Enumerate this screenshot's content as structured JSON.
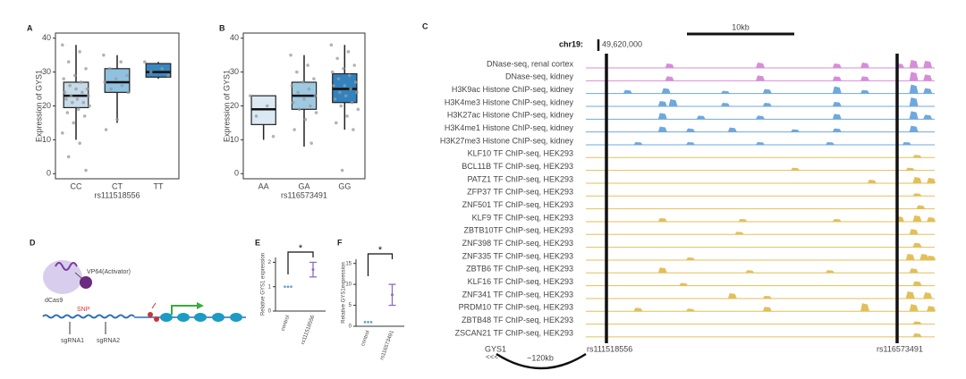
{
  "chart_data": [
    {
      "type": "box",
      "panel": "A",
      "ylabel": "Expression of GYS1",
      "xlabel": "rs111518556",
      "categories": [
        "CC",
        "CT",
        "TT"
      ],
      "ylim": [
        -1.5,
        41.5
      ],
      "yticks": [
        0,
        10,
        20,
        30,
        40
      ],
      "boxes": [
        {
          "whisker_low": 10,
          "q1": 19.5,
          "median": 23,
          "q3": 27,
          "whisker_high": 38,
          "color": "#c6dbea"
        },
        {
          "whisker_low": 15,
          "q1": 24,
          "median": 27,
          "q3": 31,
          "whisker_high": 35,
          "color": "#8fc1e0"
        },
        {
          "whisker_low": 28,
          "q1": 28.5,
          "median": 30,
          "q3": 32.5,
          "whisker_high": 33,
          "color": "#3a87c0"
        }
      ],
      "points": [
        [
          38,
          36,
          33,
          31,
          29,
          28,
          27,
          26,
          25,
          25,
          24,
          24,
          23,
          23,
          22,
          22,
          21,
          21,
          20,
          19,
          18,
          17,
          15,
          12,
          9,
          5,
          1
        ],
        [
          35,
          33,
          31,
          29,
          28,
          27,
          26,
          25,
          24,
          16,
          13
        ],
        [
          33,
          31,
          30,
          29
        ]
      ]
    },
    {
      "type": "box",
      "panel": "B",
      "ylabel": "Expression of GYS1",
      "xlabel": "rs116573491",
      "categories": [
        "AA",
        "GA",
        "GG"
      ],
      "ylim": [
        -1.5,
        41.5
      ],
      "yticks": [
        0,
        10,
        20,
        30,
        40
      ],
      "boxes": [
        {
          "whisker_low": 10,
          "q1": 14.5,
          "median": 19,
          "q3": 23,
          "whisker_high": 23,
          "color": "#dbe9f4"
        },
        {
          "whisker_low": 8,
          "q1": 19,
          "median": 23,
          "q3": 27,
          "whisker_high": 35,
          "color": "#9ecae1"
        },
        {
          "whisker_low": 13,
          "q1": 21,
          "median": 25,
          "q3": 29.5,
          "whisker_high": 38,
          "color": "#3182bd"
        }
      ],
      "points": [
        [
          23,
          20,
          17,
          11
        ],
        [
          35,
          32,
          30,
          28,
          27,
          26,
          25,
          24,
          23,
          22,
          21,
          20,
          19,
          18,
          16,
          13,
          9
        ],
        [
          38,
          36,
          34,
          32,
          31,
          30,
          29,
          28,
          27,
          26,
          26,
          25,
          24,
          24,
          23,
          22,
          21,
          20,
          19,
          17,
          15,
          13,
          1
        ]
      ]
    },
    {
      "type": "dot",
      "panel": "E",
      "ylabel": "Relative GYS1 expression",
      "annotation": "*",
      "categories": [
        "control",
        "rs111518556"
      ],
      "ylim": [
        0,
        2.2
      ],
      "yticks": [
        0,
        1,
        2
      ],
      "groups": [
        {
          "points": [
            1,
            1,
            1
          ],
          "color": "#5b9bd5"
        },
        {
          "mean": 1.7,
          "error": 0.3,
          "color": "#8e6bbf"
        }
      ]
    },
    {
      "type": "dot",
      "panel": "F",
      "ylabel": "Relative GYS1expression",
      "annotation": "*",
      "categories": [
        "control",
        "rs116573491"
      ],
      "ylim": [
        0,
        16
      ],
      "yticks": [
        0,
        5,
        10,
        15
      ],
      "groups": [
        {
          "points": [
            1,
            1,
            1
          ],
          "color": "#5b9bd5"
        },
        {
          "mean": 7.5,
          "error": 2.5,
          "color": "#8e6bbf"
        }
      ]
    }
  ],
  "browser": {
    "panel": "C",
    "scale_label": "10kb",
    "chrom": "chr19:",
    "position": "49,620,000",
    "gene": "GYS1",
    "strand": "<<<",
    "distance": "~120kb",
    "snp_left": "rs111518556",
    "snp_right": "rs116573491",
    "tracks": [
      {
        "name": "DNase-seq, renal cortex",
        "color": "#d58ed8",
        "peaks": [
          [
            0.24,
            0.5
          ],
          [
            0.5,
            0.6
          ],
          [
            0.72,
            0.5
          ],
          [
            0.8,
            0.6
          ],
          [
            0.9,
            0.5
          ],
          [
            0.94,
            0.9
          ],
          [
            0.98,
            0.8
          ]
        ]
      },
      {
        "name": "DNase-seq, kidney",
        "color": "#d58ed8",
        "peaks": [
          [
            0.24,
            0.5
          ],
          [
            0.5,
            0.6
          ],
          [
            0.72,
            0.5
          ],
          [
            0.8,
            0.5
          ],
          [
            0.94,
            1
          ],
          [
            0.98,
            0.7
          ]
        ]
      },
      {
        "name": "H3K9ac Histone ChIP-seq, kidney",
        "color": "#6fa8dc",
        "peaks": [
          [
            0.12,
            0.4
          ],
          [
            0.23,
            0.6
          ],
          [
            0.4,
            0.3
          ],
          [
            0.52,
            0.5
          ],
          [
            0.72,
            0.8
          ],
          [
            0.8,
            0.4
          ],
          [
            0.94,
            1
          ],
          [
            0.98,
            0.6
          ]
        ]
      },
      {
        "name": "H3K4me3 Histone ChIP-seq, kidney",
        "color": "#6fa8dc",
        "peaks": [
          [
            0.22,
            0.6
          ],
          [
            0.25,
            0.8
          ],
          [
            0.4,
            0.4
          ],
          [
            0.52,
            0.4
          ],
          [
            0.72,
            0.5
          ],
          [
            0.94,
            1
          ]
        ]
      },
      {
        "name": "H3K27ac Histone ChIP-seq, kidney",
        "color": "#6fa8dc",
        "peaks": [
          [
            0.22,
            0.7
          ],
          [
            0.33,
            0.4
          ],
          [
            0.5,
            0.4
          ],
          [
            0.72,
            0.6
          ],
          [
            0.94,
            0.9
          ],
          [
            0.98,
            0.5
          ]
        ]
      },
      {
        "name": "H3K4me1 Histone ChIP-seq, kidney",
        "color": "#6fa8dc",
        "peaks": [
          [
            0.22,
            0.6
          ],
          [
            0.3,
            0.4
          ],
          [
            0.42,
            0.5
          ],
          [
            0.6,
            0.3
          ],
          [
            0.72,
            0.4
          ],
          [
            0.94,
            0.7
          ]
        ]
      },
      {
        "name": "H3K27me3 Histone ChIP-seq, kidney",
        "color": "#6fa8dc",
        "peaks": [
          [
            0.15,
            0.3
          ],
          [
            0.3,
            0.3
          ],
          [
            0.5,
            0.3
          ],
          [
            0.7,
            0.3
          ],
          [
            0.92,
            0.3
          ]
        ]
      },
      {
        "name": "KLF10 TF ChIP-seq, HEK293",
        "color": "#e3bf5a",
        "peaks": [
          [
            0.95,
            0.3
          ]
        ]
      },
      {
        "name": "BCL11B TF ChIP-seq, HEK293",
        "color": "#e3bf5a",
        "peaks": [
          [
            0.6,
            0.3
          ],
          [
            0.93,
            0.3
          ]
        ]
      },
      {
        "name": "PATZ1 TF ChIP-seq, HEK293",
        "color": "#e3bf5a",
        "peaks": [
          [
            0.82,
            0.4
          ],
          [
            0.95,
            0.7
          ],
          [
            0.99,
            0.6
          ]
        ]
      },
      {
        "name": "ZFP37 TF ChIP-seq, HEK293",
        "color": "#e3bf5a",
        "peaks": [
          [
            0.95,
            0.3
          ]
        ]
      },
      {
        "name": "ZNF501 TF ChIP-seq, HEK293",
        "color": "#e3bf5a",
        "peaks": [
          [
            0.96,
            0.4
          ]
        ]
      },
      {
        "name": "KLF9 TF ChIP-seq, HEK293",
        "color": "#e3bf5a",
        "peaks": [
          [
            0.22,
            0.4
          ],
          [
            0.45,
            0.3
          ],
          [
            0.72,
            0.3
          ],
          [
            0.9,
            0.6
          ],
          [
            0.95,
            0.7
          ],
          [
            0.99,
            0.5
          ]
        ]
      },
      {
        "name": "ZBTB10TF ChIP-seq, HEK293",
        "color": "#e3bf5a",
        "peaks": [
          [
            0.44,
            0.3
          ],
          [
            0.94,
            0.6
          ]
        ]
      },
      {
        "name": "ZNF398 TF ChIP-seq, HEK293",
        "color": "#e3bf5a",
        "peaks": [
          [
            0.95,
            0.5
          ]
        ]
      },
      {
        "name": "ZNF335 TF ChIP-seq, HEK293",
        "color": "#e3bf5a",
        "peaks": [
          [
            0.3,
            0.3
          ],
          [
            0.93,
            0.7
          ],
          [
            0.97,
            0.7
          ],
          [
            0.99,
            0.5
          ]
        ]
      },
      {
        "name": "ZBTB6 TF ChIP-seq, HEK293",
        "color": "#e3bf5a",
        "peaks": [
          [
            0.22,
            0.6
          ],
          [
            0.47,
            0.3
          ],
          [
            0.7,
            0.3
          ],
          [
            0.94,
            0.5
          ]
        ]
      },
      {
        "name": "KLF16 TF ChIP-seq, HEK293",
        "color": "#e3bf5a",
        "peaks": [
          [
            0.28,
            0.3
          ],
          [
            0.95,
            0.5
          ]
        ]
      },
      {
        "name": "ZNF341 TF ChIP-seq, HEK293",
        "color": "#e3bf5a",
        "peaks": [
          [
            0.42,
            0.6
          ],
          [
            0.52,
            0.3
          ],
          [
            0.93,
            0.8
          ],
          [
            0.98,
            0.7
          ]
        ]
      },
      {
        "name": "PRDM10 TF ChIP-seq, HEK293",
        "color": "#e3bf5a",
        "peaks": [
          [
            0.15,
            0.4
          ],
          [
            0.3,
            0.3
          ],
          [
            0.52,
            0.5
          ],
          [
            0.8,
            0.9
          ],
          [
            0.94,
            0.8
          ],
          [
            0.99,
            0.6
          ]
        ]
      },
      {
        "name": "ZBTB48 TF ChIP-seq, HEK293",
        "color": "#e3bf5a",
        "peaks": [
          [
            0.95,
            0.3
          ]
        ]
      },
      {
        "name": "ZSCAN21 TF ChIP-seq, HEK293",
        "color": "#e3bf5a",
        "peaks": [
          [
            0.95,
            0.4
          ]
        ]
      }
    ]
  },
  "diagram": {
    "panel": "D",
    "activator": "VP64(Activator)",
    "cas": "dCas9",
    "snp": "SNP",
    "guide1": "sgRNA1",
    "guide2": "sgRNA2"
  }
}
